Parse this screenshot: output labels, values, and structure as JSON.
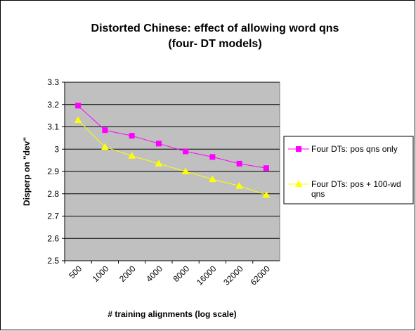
{
  "chart_data": {
    "type": "line",
    "title": [
      "Distorted Chinese: effect of allowing word qns",
      "(four- DT models)"
    ],
    "x_label": "# training alignments (log scale)",
    "y_label": "Disperp on \"dev\"",
    "categories": [
      "500",
      "1000",
      "2000",
      "4000",
      "8000",
      "16000",
      "32000",
      "62000"
    ],
    "series": [
      {
        "name": "Four DTs: pos qns only",
        "color": "#ff00ff",
        "marker": "square",
        "values": [
          3.195,
          3.085,
          3.06,
          3.025,
          2.99,
          2.965,
          2.935,
          2.915
        ]
      },
      {
        "name": "Four DTs: pos + 100-wd qns",
        "color": "#ffff00",
        "marker": "triangle",
        "values": [
          3.13,
          3.01,
          2.97,
          2.935,
          2.9,
          2.865,
          2.835,
          2.795
        ]
      }
    ],
    "ylim": [
      2.5,
      3.3
    ],
    "yticks": [
      2.5,
      2.6,
      2.7,
      2.8,
      2.9,
      3,
      3.1,
      3.2,
      3.3
    ],
    "grid": true,
    "legend": "right"
  }
}
